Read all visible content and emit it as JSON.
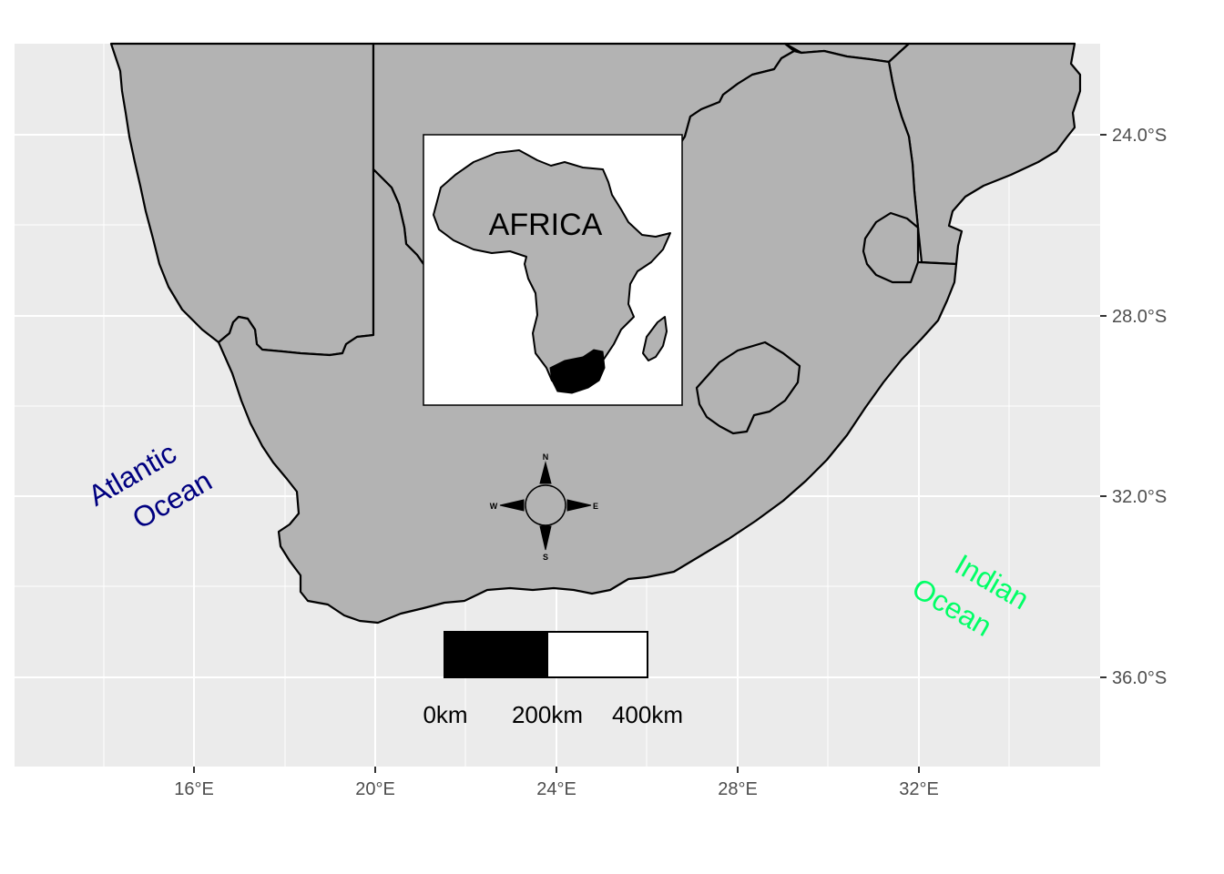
{
  "map": {
    "panel_background": "#ebebeb",
    "land_fill": "#b3b3b3",
    "grid_color": "#ffffff",
    "x_ticks": [
      "16°E",
      "20°E",
      "24°E",
      "28°E",
      "32°E"
    ],
    "y_ticks": [
      "24.0°S",
      "28.0°S",
      "32.0°S",
      "36.0°S"
    ]
  },
  "labels": {
    "atlantic": {
      "line1": "Atlantic",
      "line2": "Ocean",
      "color": "#000080"
    },
    "indian": {
      "line1": "Indian",
      "line2": "Ocean",
      "color": "#00ff66"
    }
  },
  "inset": {
    "title": "AFRICA",
    "highlight_color": "#000000"
  },
  "scalebar": {
    "labels": [
      "0km",
      "200km",
      "400km"
    ]
  },
  "compass": {
    "north": "N",
    "south": "S",
    "east": "E",
    "west": "W"
  }
}
